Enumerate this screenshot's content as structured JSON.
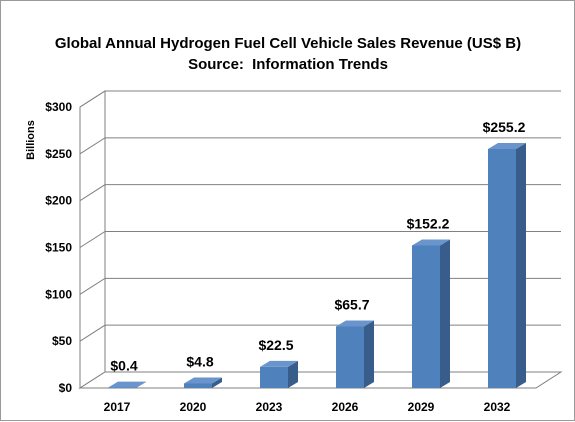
{
  "chart_data": {
    "type": "bar",
    "title": "Global Annual Hydrogen Fuel Cell Vehicle Sales Revenue (US$ B)",
    "subtitle_prefix": "Source:",
    "subtitle_source": "Information Trends",
    "ylabel": "Billions",
    "xlabel": "",
    "categories": [
      "2017",
      "2020",
      "2023",
      "2026",
      "2029",
      "2032"
    ],
    "values": [
      0.4,
      4.8,
      22.5,
      65.7,
      152.2,
      255.2
    ],
    "data_labels": [
      "$0.4",
      "$4.8",
      "$22.5",
      "$65.7",
      "$152.2",
      "$255.2"
    ],
    "y_ticks": [
      0,
      50,
      100,
      150,
      200,
      250,
      300
    ],
    "y_tick_labels": [
      "$0",
      "$50",
      "$100",
      "$150",
      "$200",
      "$250",
      "$300"
    ],
    "ylim": [
      0,
      300
    ],
    "grid": true,
    "legend": "none",
    "bar_color": "#4f81bd",
    "bar_side_color": "#385d8a",
    "bar_top_color": "#6a95cc"
  }
}
